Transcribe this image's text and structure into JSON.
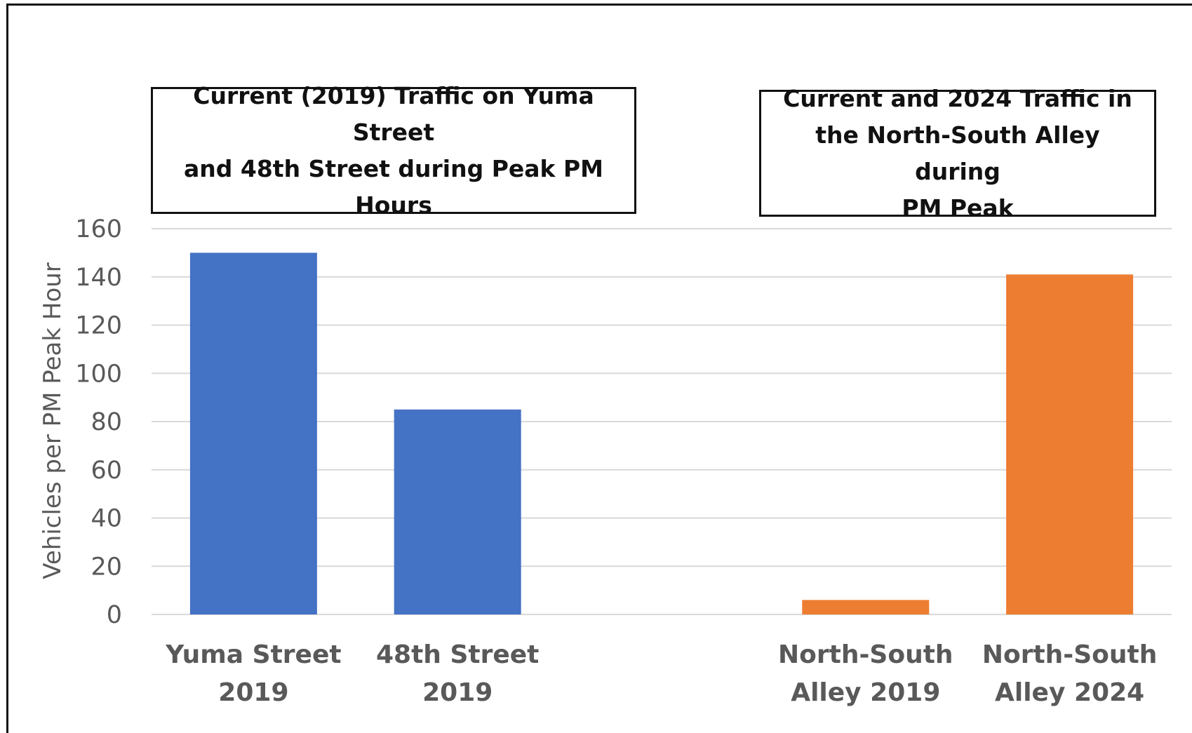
{
  "chart_data": {
    "type": "bar",
    "categories": [
      [
        "Yuma Street",
        "2019"
      ],
      [
        "48th Street",
        "2019"
      ],
      [
        "",
        ""
      ],
      [
        "North-South",
        "Alley 2019"
      ],
      [
        "North-South",
        "Alley 2024"
      ]
    ],
    "values": [
      150,
      85,
      null,
      6,
      141
    ],
    "bar_colors": [
      "#4472C4",
      "#4472C4",
      null,
      "#ED7D31",
      "#ED7D31"
    ],
    "ylabel": "Vehicles per PM Peak Hour",
    "ylim": [
      0,
      160
    ],
    "yticks": [
      0,
      20,
      40,
      60,
      80,
      100,
      120,
      140,
      160
    ],
    "grid": true,
    "gridline_color": "#D9D9D9",
    "annotations": [
      {
        "id": "left",
        "lines": [
          "Current (2019) Traffic on Yuma Street",
          "and 48th Street during Peak PM",
          "Hours"
        ]
      },
      {
        "id": "right",
        "lines": [
          "Current and 2024 Traffic in",
          "the North-South Alley during",
          "PM Peak"
        ]
      }
    ]
  }
}
